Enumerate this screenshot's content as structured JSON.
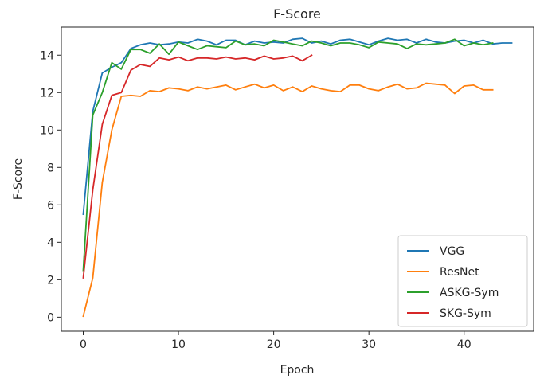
{
  "chart_data": {
    "type": "line",
    "title": "F-Score",
    "xlabel": "Epoch",
    "ylabel": "F-Score",
    "xlim": [
      -2.3,
      47.3
    ],
    "ylim": [
      -0.75,
      15.5
    ],
    "xticks": [
      0,
      10,
      20,
      30,
      40
    ],
    "yticks": [
      0,
      2,
      4,
      6,
      8,
      10,
      12,
      14
    ],
    "grid": false,
    "legend_position": "lower-right",
    "series": [
      {
        "name": "VGG",
        "color": "#1f77b4",
        "x": [
          0,
          1,
          2,
          3,
          4,
          5,
          6,
          7,
          8,
          9,
          10,
          11,
          12,
          13,
          14,
          15,
          16,
          17,
          18,
          19,
          20,
          21,
          22,
          23,
          24,
          25,
          26,
          27,
          28,
          29,
          30,
          31,
          32,
          33,
          34,
          35,
          36,
          37,
          38,
          39,
          40,
          41,
          42,
          43,
          44,
          45
        ],
        "values": [
          5.5,
          11.0,
          13.05,
          13.35,
          13.6,
          14.35,
          14.55,
          14.65,
          14.55,
          14.6,
          14.7,
          14.65,
          14.85,
          14.75,
          14.55,
          14.8,
          14.8,
          14.55,
          14.75,
          14.65,
          14.7,
          14.65,
          14.85,
          14.9,
          14.65,
          14.75,
          14.6,
          14.8,
          14.85,
          14.7,
          14.55,
          14.75,
          14.9,
          14.8,
          14.85,
          14.65,
          14.85,
          14.7,
          14.65,
          14.75,
          14.8,
          14.65,
          14.8,
          14.6,
          14.65,
          14.65
        ]
      },
      {
        "name": "ResNet",
        "color": "#ff7f0e",
        "x": [
          0,
          1,
          2,
          3,
          4,
          5,
          6,
          7,
          8,
          9,
          10,
          11,
          12,
          13,
          14,
          15,
          16,
          17,
          18,
          19,
          20,
          21,
          22,
          23,
          24,
          25,
          26,
          27,
          28,
          29,
          30,
          31,
          32,
          33,
          34,
          35,
          36,
          37,
          38,
          39,
          40,
          41,
          42,
          43
        ],
        "values": [
          0.05,
          2.1,
          7.2,
          10.0,
          11.8,
          11.85,
          11.8,
          12.1,
          12.05,
          12.25,
          12.2,
          12.1,
          12.3,
          12.2,
          12.3,
          12.4,
          12.15,
          12.3,
          12.45,
          12.25,
          12.4,
          12.1,
          12.3,
          12.05,
          12.35,
          12.2,
          12.1,
          12.05,
          12.4,
          12.4,
          12.2,
          12.1,
          12.3,
          12.45,
          12.2,
          12.25,
          12.5,
          12.45,
          12.4,
          11.95,
          12.35,
          12.4,
          12.15,
          12.15
        ]
      },
      {
        "name": "ASKG-Sym",
        "color": "#2ca02c",
        "x": [
          0,
          1,
          2,
          3,
          4,
          5,
          6,
          7,
          8,
          9,
          10,
          11,
          12,
          13,
          14,
          15,
          16,
          17,
          18,
          19,
          20,
          21,
          22,
          23,
          24,
          25,
          26,
          27,
          28,
          29,
          30,
          31,
          32,
          33,
          34,
          35,
          36,
          37,
          38,
          39,
          40,
          41,
          42,
          43
        ],
        "values": [
          2.5,
          10.8,
          12.0,
          13.6,
          13.25,
          14.3,
          14.3,
          14.1,
          14.6,
          14.05,
          14.7,
          14.5,
          14.3,
          14.5,
          14.45,
          14.4,
          14.75,
          14.55,
          14.6,
          14.5,
          14.8,
          14.7,
          14.6,
          14.5,
          14.75,
          14.65,
          14.5,
          14.65,
          14.65,
          14.55,
          14.4,
          14.7,
          14.65,
          14.6,
          14.35,
          14.6,
          14.55,
          14.6,
          14.65,
          14.85,
          14.5,
          14.65,
          14.55,
          14.65
        ]
      },
      {
        "name": "SKG-Sym",
        "color": "#d62728",
        "x": [
          0,
          1,
          2,
          3,
          4,
          5,
          6,
          7,
          8,
          9,
          10,
          11,
          12,
          13,
          14,
          15,
          16,
          17,
          18,
          19,
          20,
          21,
          22,
          23,
          24
        ],
        "values": [
          2.1,
          6.8,
          10.3,
          11.85,
          12.0,
          13.2,
          13.5,
          13.4,
          13.85,
          13.75,
          13.9,
          13.7,
          13.85,
          13.85,
          13.8,
          13.9,
          13.8,
          13.85,
          13.75,
          13.95,
          13.8,
          13.85,
          13.95,
          13.7,
          14.0
        ]
      }
    ]
  }
}
